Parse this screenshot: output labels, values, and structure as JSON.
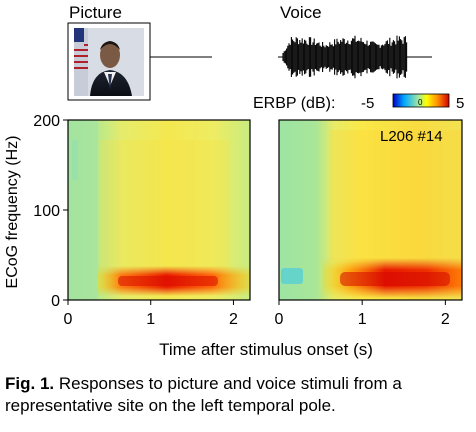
{
  "figure": {
    "stimuli": {
      "picture_label": "Picture",
      "voice_label": "Voice"
    },
    "colorbar": {
      "label": "ERBP (dB):",
      "min_label": "-5",
      "mid_label": "0",
      "max_label": "5",
      "colors": [
        "#0000c8",
        "#00a8ff",
        "#9ee8a0",
        "#ffff00",
        "#ff8c00",
        "#d20000"
      ]
    },
    "annotation": "L206 #14",
    "caption_label": "Fig. 1.",
    "caption_text": " Responses to picture and voice stimuli from a representative site on the left temporal pole."
  },
  "chart_data": [
    {
      "type": "heatmap",
      "panel": "picture",
      "xlabel": "Time after stimulus onset (s)",
      "ylabel": "ECoG frequency (Hz)",
      "xlim": [
        0,
        2.2
      ],
      "ylim": [
        0,
        200
      ],
      "x_ticks": [
        "0",
        "1",
        "2"
      ],
      "y_ticks": [
        "0",
        "100",
        "200"
      ],
      "colorbar_range_db": [
        -5,
        5
      ],
      "regions": [
        {
          "t": [
            0.0,
            0.35
          ],
          "f": [
            0,
            200
          ],
          "erbp_db": 0
        },
        {
          "t": [
            0.35,
            1.6
          ],
          "f": [
            40,
            200
          ],
          "erbp_db": 1
        },
        {
          "t": [
            0.35,
            1.6
          ],
          "f": [
            8,
            30
          ],
          "erbp_db": 4
        }
      ]
    },
    {
      "type": "heatmap",
      "panel": "voice",
      "xlabel": "Time after stimulus onset (s)",
      "xlim": [
        0,
        2.2
      ],
      "ylim": [
        0,
        200
      ],
      "x_ticks": [
        "0",
        "1",
        "2"
      ],
      "y_ticks": [
        "0",
        "100",
        "200"
      ],
      "colorbar_range_db": [
        -5,
        5
      ],
      "regions": [
        {
          "t": [
            0.0,
            0.5
          ],
          "f": [
            0,
            200
          ],
          "erbp_db": 0
        },
        {
          "t": [
            0.0,
            0.25
          ],
          "f": [
            10,
            30
          ],
          "erbp_db": -2
        },
        {
          "t": [
            0.5,
            2.2
          ],
          "f": [
            40,
            200
          ],
          "erbp_db": 2
        },
        {
          "t": [
            0.5,
            2.2
          ],
          "f": [
            5,
            35
          ],
          "erbp_db": 4.5
        }
      ]
    }
  ]
}
